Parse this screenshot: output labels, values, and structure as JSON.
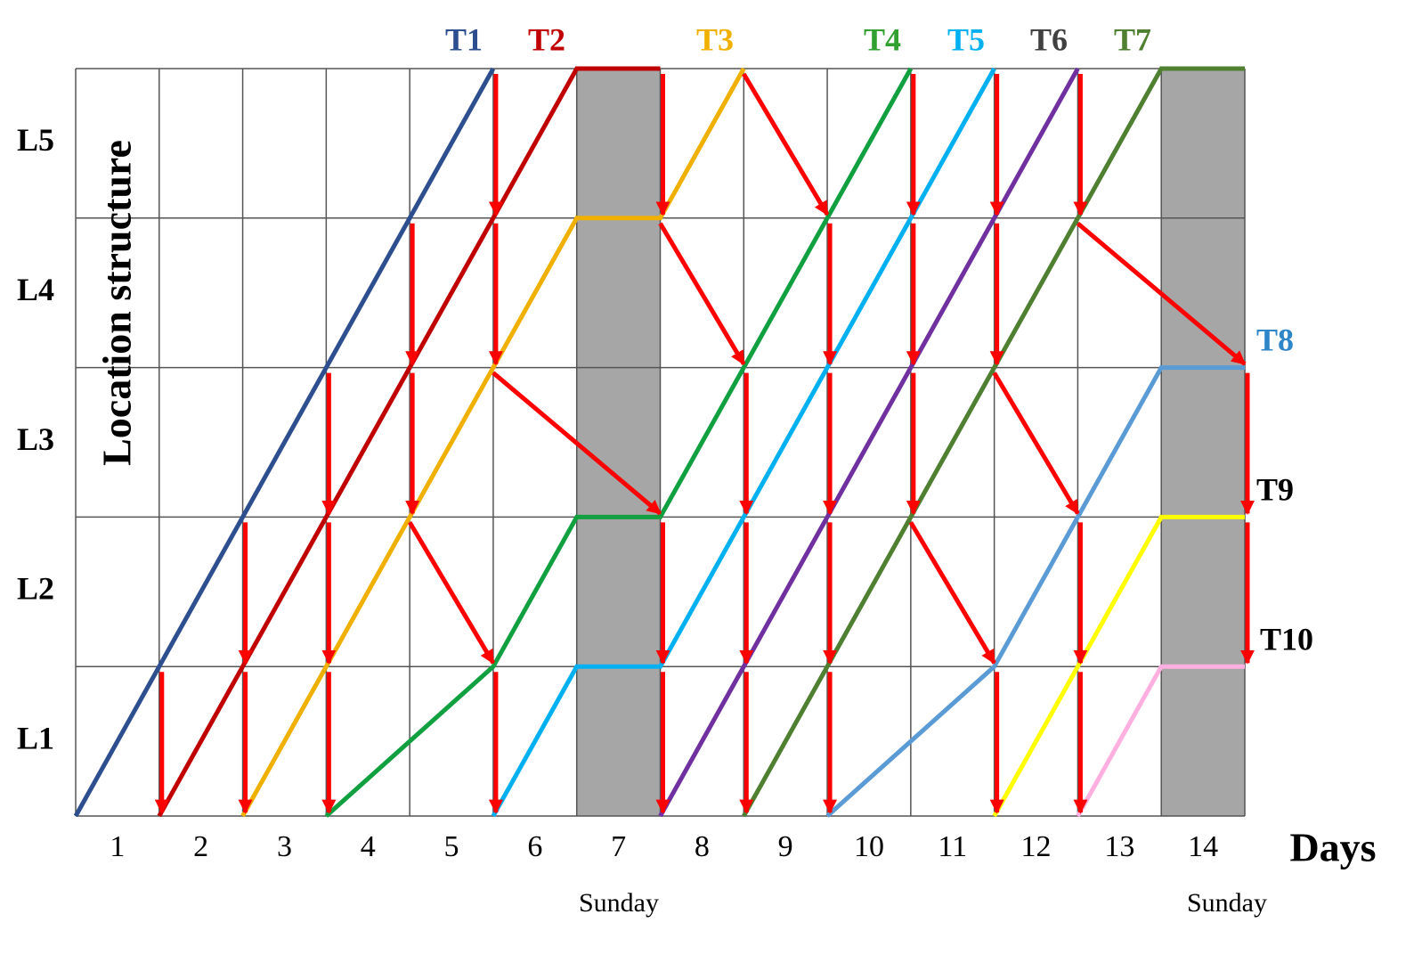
{
  "axis": {
    "y_title": "Location structure",
    "x_title": "Days",
    "levels": [
      "L1",
      "L2",
      "L3",
      "L4",
      "L5"
    ],
    "days": [
      "1",
      "2",
      "3",
      "4",
      "5",
      "6",
      "7",
      "8",
      "9",
      "10",
      "11",
      "12",
      "13",
      "14"
    ],
    "day_notes": [
      "Sunday",
      "Sunday"
    ]
  },
  "tasks": [
    {
      "label": "T1"
    },
    {
      "label": "T2"
    },
    {
      "label": "T3"
    },
    {
      "label": "T4"
    },
    {
      "label": "T5"
    },
    {
      "label": "T6"
    },
    {
      "label": "T7"
    },
    {
      "label": "T8"
    },
    {
      "label": "T9"
    },
    {
      "label": "T10"
    }
  ]
}
